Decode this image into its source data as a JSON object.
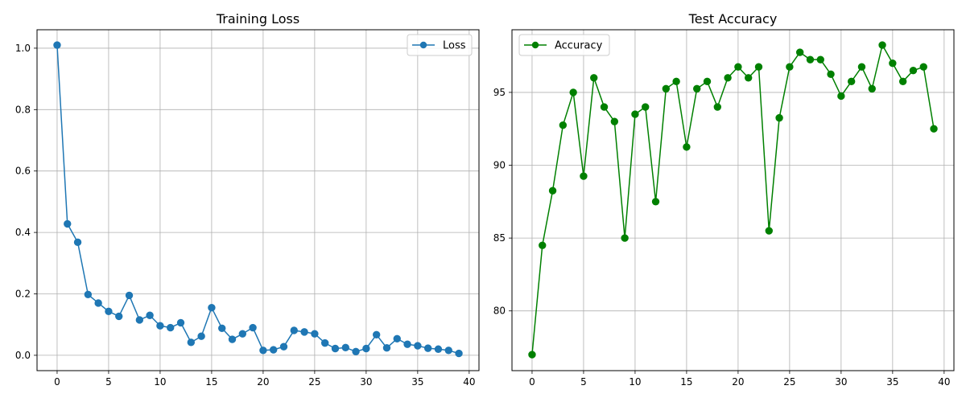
{
  "colors": {
    "loss": "#1f77b4",
    "accuracy": "#008000",
    "grid": "#b0b0b0",
    "axis": "#000000"
  },
  "chart_data": [
    {
      "type": "line",
      "title": "Training Loss",
      "xlabel": "",
      "ylabel": "",
      "grid": true,
      "legend": "top-right",
      "xlim": [
        -1.95,
        40.95
      ],
      "ylim": [
        -0.05,
        1.06
      ],
      "xticks": [
        0,
        5,
        10,
        15,
        20,
        25,
        30,
        35,
        40
      ],
      "xtick_labels": [
        "0",
        "5",
        "10",
        "15",
        "20",
        "25",
        "30",
        "35",
        "40"
      ],
      "yticks": [
        0.0,
        0.2,
        0.4,
        0.6,
        0.8,
        1.0
      ],
      "ytick_labels": [
        "0.0",
        "0.2",
        "0.4",
        "0.6",
        "0.8",
        "1.0"
      ],
      "series": [
        {
          "name": "Loss",
          "color": "#1f77b4",
          "marker": "circle",
          "x": [
            0,
            1,
            2,
            3,
            4,
            5,
            6,
            7,
            8,
            9,
            10,
            11,
            12,
            13,
            14,
            15,
            16,
            17,
            18,
            19,
            20,
            21,
            22,
            23,
            24,
            25,
            26,
            27,
            28,
            29,
            30,
            31,
            32,
            33,
            34,
            35,
            36,
            37,
            38,
            39
          ],
          "values": [
            1.01,
            0.428,
            0.368,
            0.198,
            0.17,
            0.143,
            0.127,
            0.195,
            0.115,
            0.13,
            0.096,
            0.09,
            0.106,
            0.042,
            0.062,
            0.155,
            0.088,
            0.052,
            0.07,
            0.09,
            0.016,
            0.018,
            0.028,
            0.081,
            0.076,
            0.07,
            0.04,
            0.022,
            0.025,
            0.012,
            0.022,
            0.067,
            0.024,
            0.054,
            0.036,
            0.031,
            0.023,
            0.02,
            0.016,
            0.006
          ]
        }
      ]
    },
    {
      "type": "line",
      "title": "Test Accuracy",
      "xlabel": "",
      "ylabel": "",
      "grid": true,
      "legend": "top-left",
      "xlim": [
        -1.95,
        40.95
      ],
      "ylim": [
        75.9,
        99.3
      ],
      "xticks": [
        0,
        5,
        10,
        15,
        20,
        25,
        30,
        35,
        40
      ],
      "xtick_labels": [
        "0",
        "5",
        "10",
        "15",
        "20",
        "25",
        "30",
        "35",
        "40"
      ],
      "yticks": [
        80,
        85,
        90,
        95
      ],
      "ytick_labels": [
        "80",
        "85",
        "90",
        "95"
      ],
      "series": [
        {
          "name": "Accuracy",
          "color": "#008000",
          "marker": "circle",
          "x": [
            0,
            1,
            2,
            3,
            4,
            5,
            6,
            7,
            8,
            9,
            10,
            11,
            12,
            13,
            14,
            15,
            16,
            17,
            18,
            19,
            20,
            21,
            22,
            23,
            24,
            25,
            26,
            27,
            28,
            29,
            30,
            31,
            32,
            33,
            34,
            35,
            36,
            37,
            38,
            39
          ],
          "values": [
            77.0,
            84.5,
            88.25,
            92.75,
            95.0,
            89.25,
            96.0,
            94.0,
            93.0,
            85.0,
            93.5,
            94.0,
            87.5,
            95.25,
            95.75,
            91.25,
            95.25,
            95.75,
            94.0,
            96.0,
            96.75,
            96.0,
            96.75,
            85.5,
            93.25,
            96.75,
            97.75,
            97.25,
            97.25,
            96.25,
            94.75,
            95.75,
            96.75,
            95.25,
            98.25,
            97.0,
            95.75,
            96.5,
            96.75,
            92.5
          ]
        }
      ]
    }
  ]
}
